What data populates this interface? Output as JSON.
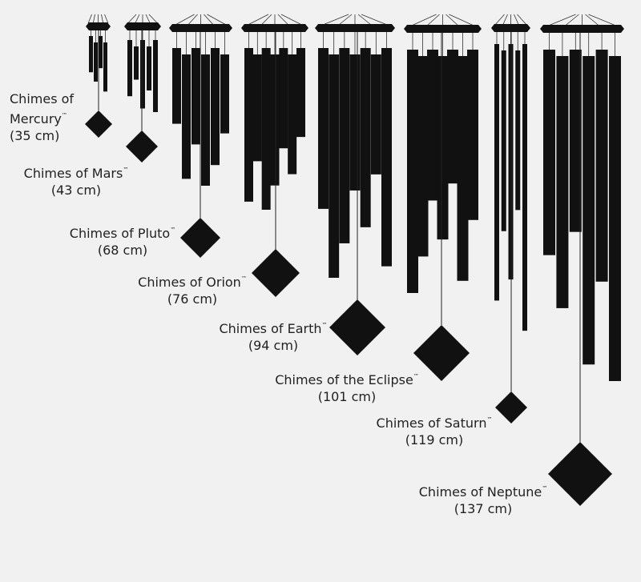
{
  "items": [
    {
      "name": "Chimes of Mercury",
      "trademark": "™",
      "size": "(35 cm)"
    },
    {
      "name": "Chimes of Mars",
      "trademark": "™",
      "size": "(43 cm)"
    },
    {
      "name": "Chimes of Pluto",
      "trademark": "™",
      "size": "(68 cm)"
    },
    {
      "name": "Chimes of Orion",
      "trademark": "™",
      "size": "(76 cm)"
    },
    {
      "name": "Chimes of Earth",
      "trademark": "™",
      "size": "(94 cm)"
    },
    {
      "name": "Chimes of the Eclipse",
      "trademark": "™",
      "size": "(101 cm)"
    },
    {
      "name": "Chimes of Saturn",
      "trademark": "™",
      "size": "(119 cm)"
    },
    {
      "name": "Chimes of Neptune",
      "trademark": "™",
      "size": "(137 cm)"
    }
  ]
}
